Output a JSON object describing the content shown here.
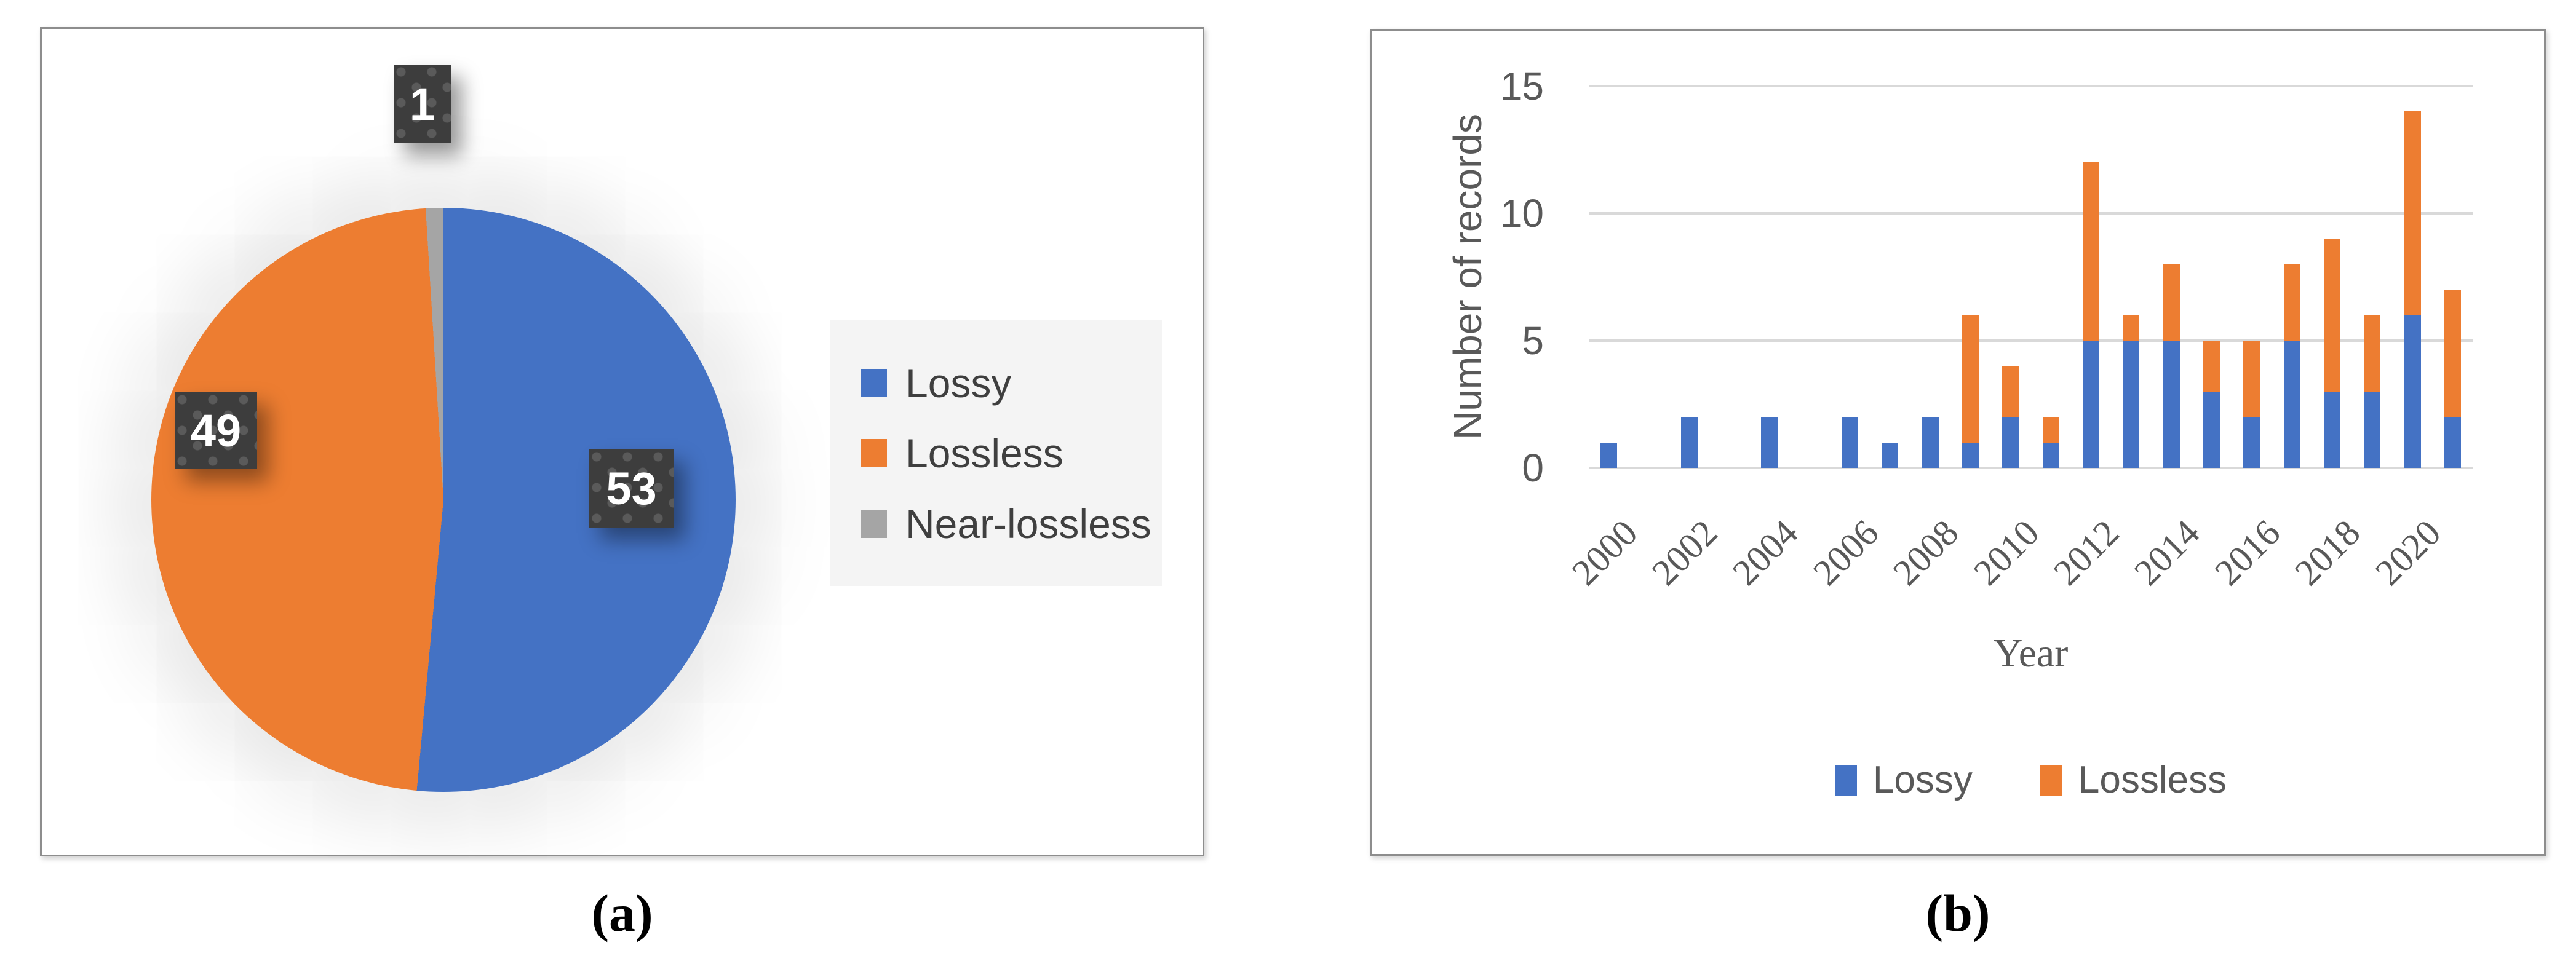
{
  "figure": {
    "captions": {
      "a": "(a)",
      "b": "(b)"
    }
  },
  "colors": {
    "lossy_blue": "#4472C4",
    "lossless_orange": "#ED7D31",
    "near_lossless_gray": "#A5A5A5",
    "axis_text": "#595959",
    "gridline": "#D9D9D9",
    "panel_border": "#8D8D8D",
    "data_label_bg": "#3D3D3D",
    "data_label_text": "#FFFFFF",
    "pie_legend_bg": "#F4F4F4"
  },
  "chart_data": [
    {
      "type": "pie",
      "panel": "a",
      "title": "",
      "slices": [
        {
          "label": "Lossy",
          "value": 53,
          "color": "#4472C4"
        },
        {
          "label": "Lossless",
          "value": 49,
          "color": "#ED7D31"
        },
        {
          "label": "Near-lossless",
          "value": 1,
          "color": "#A5A5A5"
        }
      ],
      "start_angle_deg": 0,
      "direction": "clockwise",
      "data_labels": [
        53,
        49,
        1
      ],
      "legend_position": "right"
    },
    {
      "type": "bar",
      "stacked": true,
      "panel": "b",
      "title": "",
      "categories": [
        "2000",
        "2001",
        "2002",
        "2003",
        "2004",
        "2005",
        "2006",
        "2007",
        "2008",
        "2009",
        "2010",
        "2011",
        "2012",
        "2013",
        "2014",
        "2015",
        "2016",
        "2017",
        "2018",
        "2019",
        "2020",
        "2021"
      ],
      "series": [
        {
          "name": "Lossy",
          "color": "#4472C4",
          "values": [
            1,
            0,
            2,
            0,
            2,
            0,
            2,
            1,
            2,
            1,
            2,
            1,
            5,
            5,
            5,
            3,
            2,
            5,
            3,
            3,
            6,
            2
          ]
        },
        {
          "name": "Lossless",
          "color": "#ED7D31",
          "values": [
            0,
            0,
            0,
            0,
            0,
            0,
            0,
            0,
            0,
            5,
            2,
            1,
            7,
            1,
            3,
            2,
            3,
            3,
            6,
            3,
            8,
            5
          ]
        }
      ],
      "xlabel": "Year",
      "ylabel": "Number of records",
      "ylim": [
        0,
        15
      ],
      "yticks": [
        0,
        5,
        10,
        15
      ],
      "x_tick_labels": [
        "2000",
        "2002",
        "2004",
        "2006",
        "2008",
        "2010",
        "2012",
        "2014",
        "2016",
        "2018",
        "2020"
      ],
      "x_tick_step": 2,
      "grid": true,
      "legend_position": "bottom"
    }
  ]
}
